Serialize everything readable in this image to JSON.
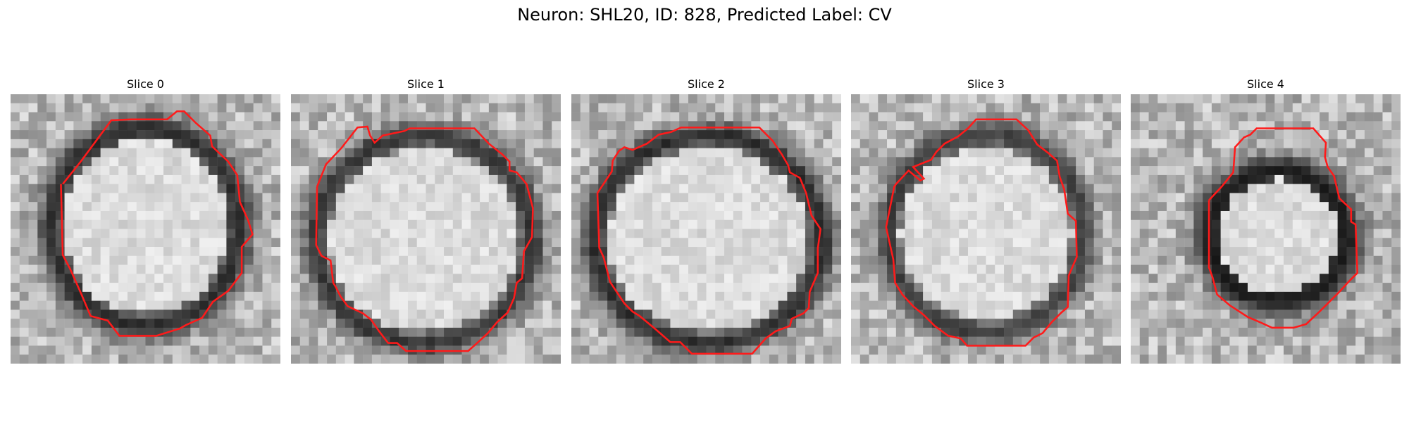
{
  "figure": {
    "title": "Neuron: SHL20, ID: 828, Predicted Label: CV"
  },
  "panels": [
    {
      "title": "Slice 0"
    },
    {
      "title": "Slice 1"
    },
    {
      "title": "Slice 2"
    },
    {
      "title": "Slice 3"
    },
    {
      "title": "Slice 4"
    }
  ],
  "colors": {
    "contour": "#ff1a1a",
    "background": "#ffffff"
  },
  "colormap": "gray"
}
